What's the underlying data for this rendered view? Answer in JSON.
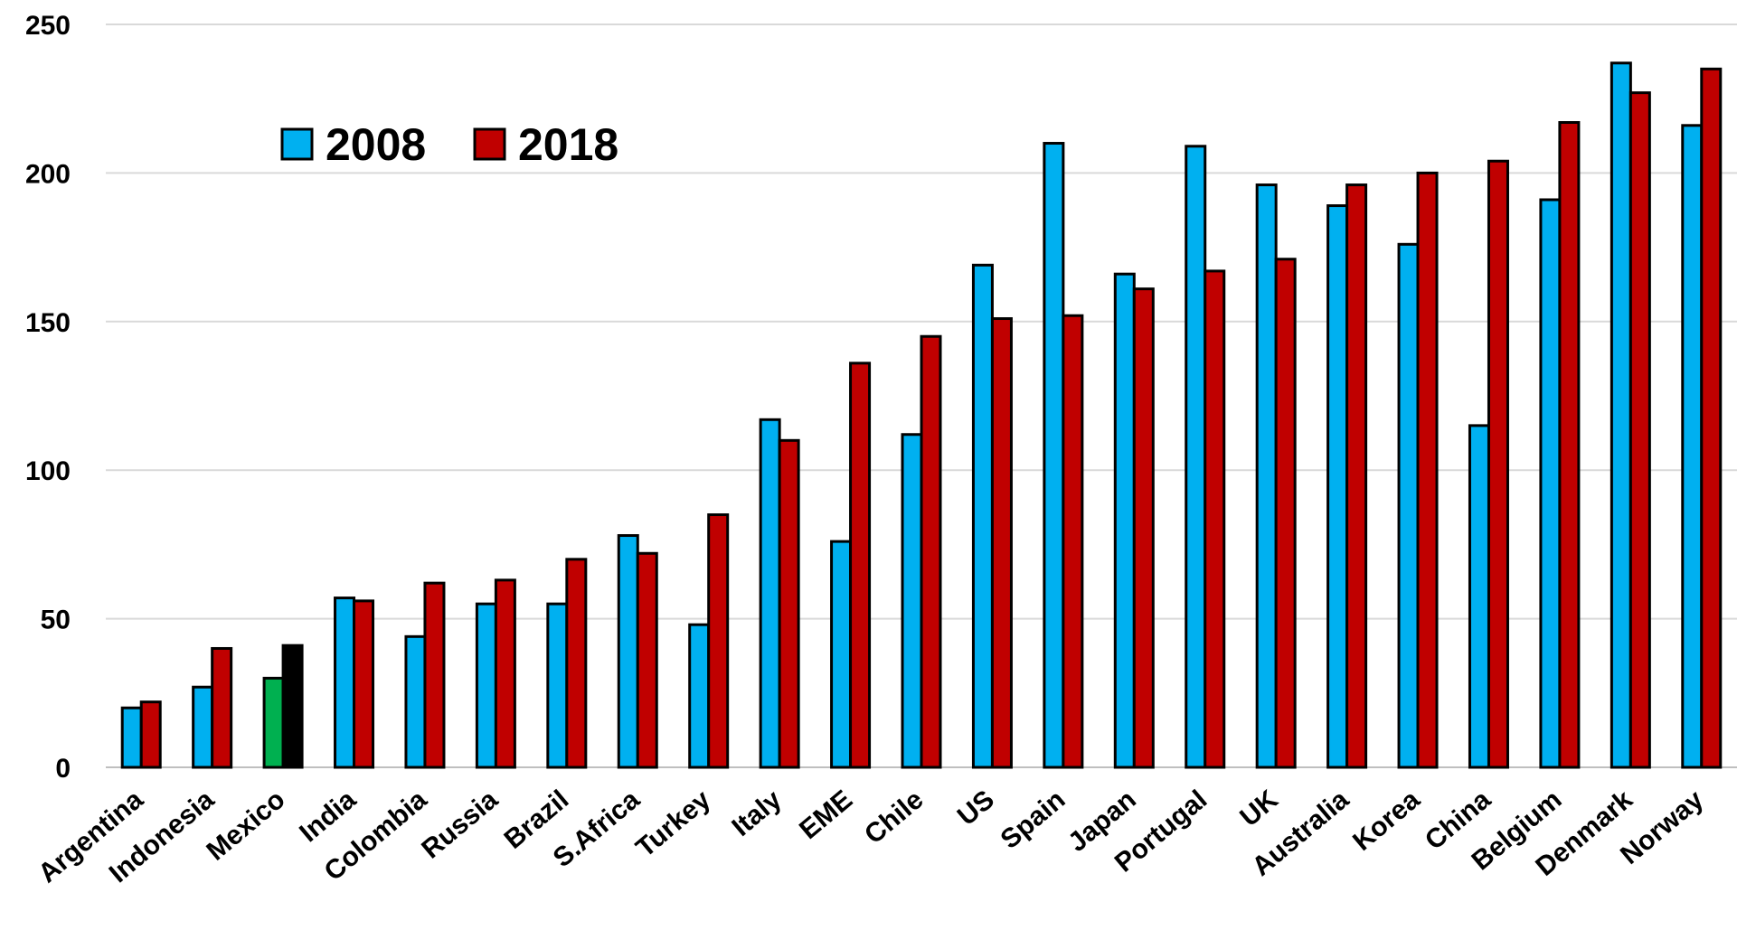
{
  "chart_data": {
    "type": "bar",
    "title": "",
    "xlabel": "",
    "ylabel": "",
    "ylim": [
      0,
      250
    ],
    "yticks": [
      0,
      50,
      100,
      150,
      200,
      250
    ],
    "grid": true,
    "legend_position": "top-left",
    "categories": [
      "Argentina",
      "Indonesia",
      "Mexico",
      "India",
      "Colombia",
      "Russia",
      "Brazil",
      "S.Africa",
      "Turkey",
      "Italy",
      "EME",
      "Chile",
      "US",
      "Spain",
      "Japan",
      "Portugal",
      "UK",
      "Australia",
      "Korea",
      "China",
      "Belgium",
      "Denmark",
      "Norway"
    ],
    "series": [
      {
        "name": "2008",
        "color": "#00b0f0",
        "values": [
          20,
          27,
          30,
          57,
          44,
          55,
          55,
          78,
          48,
          117,
          76,
          112,
          169,
          210,
          166,
          209,
          196,
          189,
          176,
          115,
          191,
          237,
          216
        ]
      },
      {
        "name": "2018",
        "color": "#c00000",
        "values": [
          22,
          40,
          41,
          56,
          62,
          63,
          70,
          72,
          85,
          110,
          136,
          145,
          151,
          152,
          161,
          167,
          171,
          196,
          200,
          204,
          217,
          227,
          235
        ]
      }
    ],
    "highlight": {
      "category": "Mexico",
      "colors": [
        "#00b050",
        "#000000"
      ]
    }
  }
}
